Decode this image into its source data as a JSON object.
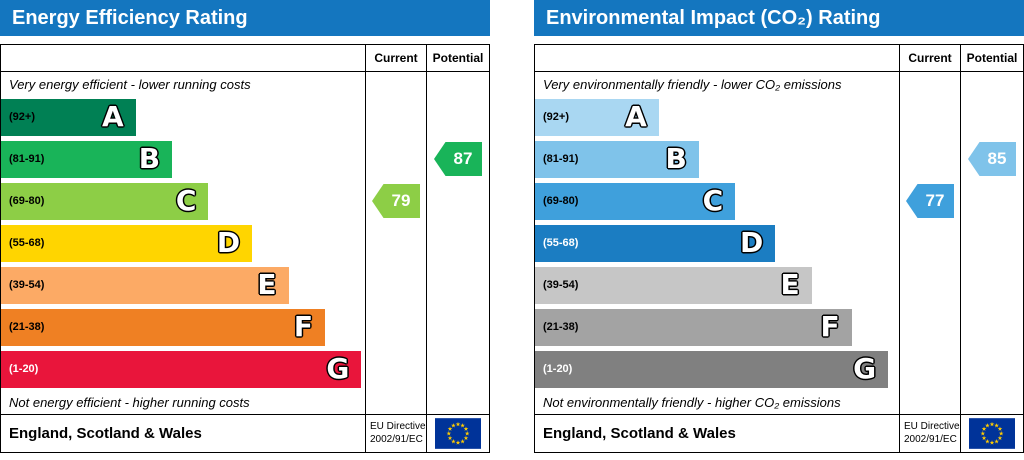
{
  "panels": [
    {
      "title": "Energy Efficiency Rating",
      "title_bg": "#1476bf",
      "columns": {
        "current": "Current",
        "potential": "Potential"
      },
      "top_label": "Very energy efficient - lower running costs",
      "bottom_label": "Not energy efficient - higher running costs",
      "bands": [
        {
          "range": "(92+)",
          "letter": "A",
          "color": "#008054",
          "width": "37%",
          "text_color": "#000000"
        },
        {
          "range": "(81-91)",
          "letter": "B",
          "color": "#19b459",
          "width": "47%",
          "text_color": "#000000"
        },
        {
          "range": "(69-80)",
          "letter": "C",
          "color": "#8dce46",
          "width": "57%",
          "text_color": "#000000"
        },
        {
          "range": "(55-68)",
          "letter": "D",
          "color": "#ffd500",
          "width": "69%",
          "text_color": "#000000"
        },
        {
          "range": "(39-54)",
          "letter": "E",
          "color": "#fcaa65",
          "width": "79%",
          "text_color": "#000000"
        },
        {
          "range": "(21-38)",
          "letter": "F",
          "color": "#ef8023",
          "width": "89%",
          "text_color": "#000000"
        },
        {
          "range": "(1-20)",
          "letter": "G",
          "color": "#e9153b",
          "width": "99%",
          "text_color": "#ffffff"
        }
      ],
      "current": {
        "value": "79",
        "color": "#8dce46",
        "band_index": 2
      },
      "potential": {
        "value": "87",
        "color": "#19b459",
        "band_index": 1
      },
      "footer": {
        "region": "England, Scotland & Wales",
        "directive_line1": "EU Directive",
        "directive_line2": "2002/91/EC"
      }
    },
    {
      "title": "Environmental Impact (CO₂) Rating",
      "title_bg": "#1476bf",
      "columns": {
        "current": "Current",
        "potential": "Potential"
      },
      "top_label": "Very environmentally friendly - lower CO₂ emissions",
      "bottom_label": "Not environmentally friendly - higher CO₂ emissions",
      "bands": [
        {
          "range": "(92+)",
          "letter": "A",
          "color": "#a9d7f2",
          "width": "34%",
          "text_color": "#000000"
        },
        {
          "range": "(81-91)",
          "letter": "B",
          "color": "#7fc3ea",
          "width": "45%",
          "text_color": "#000000"
        },
        {
          "range": "(69-80)",
          "letter": "C",
          "color": "#3fa0dc",
          "width": "55%",
          "text_color": "#000000"
        },
        {
          "range": "(55-68)",
          "letter": "D",
          "color": "#1b7dc2",
          "width": "66%",
          "text_color": "#ffffff"
        },
        {
          "range": "(39-54)",
          "letter": "E",
          "color": "#c6c6c6",
          "width": "76%",
          "text_color": "#000000"
        },
        {
          "range": "(21-38)",
          "letter": "F",
          "color": "#a3a3a3",
          "width": "87%",
          "text_color": "#000000"
        },
        {
          "range": "(1-20)",
          "letter": "G",
          "color": "#808080",
          "width": "97%",
          "text_color": "#ffffff"
        }
      ],
      "current": {
        "value": "77",
        "color": "#3fa0dc",
        "band_index": 2
      },
      "potential": {
        "value": "85",
        "color": "#7fc3ea",
        "band_index": 1
      },
      "footer": {
        "region": "England, Scotland & Wales",
        "directive_line1": "EU Directive",
        "directive_line2": "2002/91/EC"
      }
    }
  ],
  "chart_data": [
    {
      "type": "bar",
      "title": "Energy Efficiency Rating",
      "categories": [
        "A (92+)",
        "B (81-91)",
        "C (69-80)",
        "D (55-68)",
        "E (39-54)",
        "F (21-38)",
        "G (1-20)"
      ],
      "band_colors": [
        "#008054",
        "#19b459",
        "#8dce46",
        "#ffd500",
        "#fcaa65",
        "#ef8023",
        "#e9153b"
      ],
      "series": [
        {
          "name": "Current",
          "value": 79,
          "band": "C"
        },
        {
          "name": "Potential",
          "value": 87,
          "band": "B"
        }
      ],
      "scale": [
        0,
        100
      ],
      "top_annotation": "Very energy efficient - lower running costs",
      "bottom_annotation": "Not energy efficient - higher running costs",
      "footer": "England, Scotland & Wales",
      "directive": "EU Directive 2002/91/EC"
    },
    {
      "type": "bar",
      "title": "Environmental Impact (CO₂) Rating",
      "categories": [
        "A (92+)",
        "B (81-91)",
        "C (69-80)",
        "D (55-68)",
        "E (39-54)",
        "F (21-38)",
        "G (1-20)"
      ],
      "band_colors": [
        "#a9d7f2",
        "#7fc3ea",
        "#3fa0dc",
        "#1b7dc2",
        "#c6c6c6",
        "#a3a3a3",
        "#808080"
      ],
      "series": [
        {
          "name": "Current",
          "value": 77,
          "band": "C"
        },
        {
          "name": "Potential",
          "value": 85,
          "band": "B"
        }
      ],
      "scale": [
        0,
        100
      ],
      "top_annotation": "Very environmentally friendly - lower CO₂ emissions",
      "bottom_annotation": "Not environmentally friendly - higher CO₂ emissions",
      "footer": "England, Scotland & Wales",
      "directive": "EU Directive 2002/91/EC"
    }
  ]
}
